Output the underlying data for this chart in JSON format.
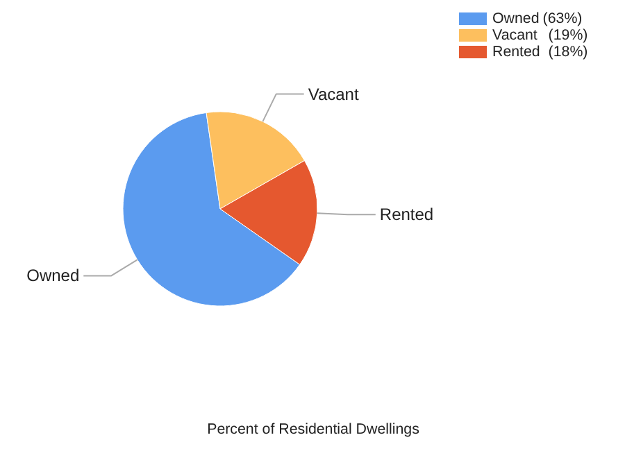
{
  "chart_data": {
    "type": "pie",
    "title": "Percent of Residential Dwellings",
    "categories": [
      "Owned",
      "Vacant",
      "Rented"
    ],
    "values": [
      63,
      19,
      18
    ],
    "value_labels": [
      "(63%)",
      "(19%)",
      "(18%)"
    ],
    "colors": [
      "#5b9bef",
      "#fdbf5e",
      "#e5582f"
    ],
    "legend": "top right"
  }
}
